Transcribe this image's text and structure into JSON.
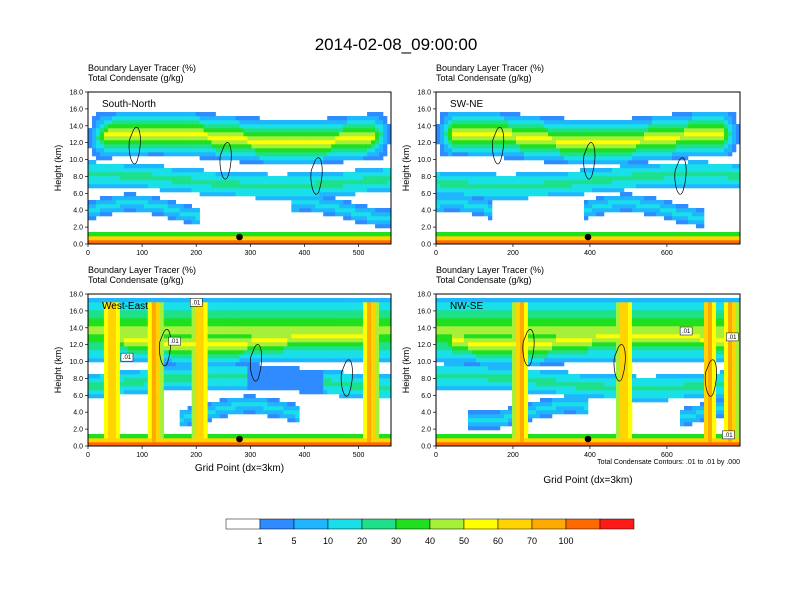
{
  "title": "2014-02-08_09:00:00",
  "colors": {
    "levels": [
      "#ffffff",
      "#2f8bff",
      "#1fb6ff",
      "#19e0e8",
      "#1fe08a",
      "#1fe01f",
      "#a6f03a",
      "#ffff00",
      "#ffd400",
      "#ffaa00",
      "#ff6a00",
      "#ff1a1a"
    ],
    "contour": "#000000",
    "frame": "#000000"
  },
  "colorbar": {
    "labels": [
      "1",
      "5",
      "10",
      "20",
      "30",
      "40",
      "50",
      "60",
      "70",
      "100"
    ]
  },
  "footer": {
    "contour_note": "Total Condensate Contours: .01 to .01 by .000",
    "xlabel": "Grid Point (dx=3km)"
  },
  "chart_data": [
    {
      "type": "heatmap",
      "id": "south-north",
      "panel_label": "South-North",
      "subtitle1": "Boundary Layer Tracer   (%)",
      "subtitle2": "Total Condensate   (g/kg)",
      "ylabel": "Height (km)",
      "xlabel": "",
      "xlim": [
        0,
        560
      ],
      "ylim": [
        0,
        18
      ],
      "xticks": [
        0,
        100,
        200,
        300,
        400,
        500
      ],
      "yticks": [
        "0.0",
        "2.0",
        "4.0",
        "6.0",
        "8.0",
        "10.0",
        "12.0",
        "14.0",
        "16.0",
        "18.0"
      ],
      "marker_x": 280,
      "contour_labels": []
    },
    {
      "type": "heatmap",
      "id": "sw-ne",
      "panel_label": "SW-NE",
      "subtitle1": "Boundary Layer Tracer   (%)",
      "subtitle2": "Total Condensate   (g/kg)",
      "ylabel": "Height (km)",
      "xlabel": "",
      "xlim": [
        0,
        790
      ],
      "ylim": [
        0,
        18
      ],
      "xticks": [
        0,
        200,
        400,
        600
      ],
      "yticks": [
        "0.0",
        "2.0",
        "4.0",
        "6.0",
        "8.0",
        "10.0",
        "12.0",
        "14.0",
        "16.0",
        "18.0"
      ],
      "marker_x": 395,
      "contour_labels": []
    },
    {
      "type": "heatmap",
      "id": "west-east",
      "panel_label": "West-East",
      "subtitle1": "Boundary Layer Tracer   (%)",
      "subtitle2": "Total Condensate   (g/kg)",
      "ylabel": "Height (km)",
      "xlabel": "Grid Point (dx=3km)",
      "xlim": [
        0,
        560
      ],
      "ylim": [
        0,
        18
      ],
      "xticks": [
        0,
        100,
        200,
        300,
        400,
        500
      ],
      "yticks": [
        "0.0",
        "2.0",
        "4.0",
        "6.0",
        "8.0",
        "10.0",
        "12.0",
        "14.0",
        "16.0",
        "18.0"
      ],
      "marker_x": 280,
      "contour_labels": [
        {
          "text": ".01",
          "x": 200,
          "y": 16.9
        },
        {
          "text": ".01",
          "x": 160,
          "y": 12.3
        },
        {
          "text": ".01",
          "x": 72,
          "y": 10.4
        }
      ]
    },
    {
      "type": "heatmap",
      "id": "nw-se",
      "panel_label": "NW-SE",
      "subtitle1": "Boundary Layer Tracer   (%)",
      "subtitle2": "Total Condensate   (g/kg)",
      "ylabel": "Height (km)",
      "xlabel": "",
      "xlim": [
        0,
        790
      ],
      "ylim": [
        0,
        18
      ],
      "xticks": [
        0,
        200,
        400,
        600
      ],
      "yticks": [
        "0.0",
        "2.0",
        "4.0",
        "6.0",
        "8.0",
        "10.0",
        "12.0",
        "14.0",
        "16.0",
        "18.0"
      ],
      "marker_x": 395,
      "contour_labels": [
        {
          "text": ".01",
          "x": 650,
          "y": 13.5
        },
        {
          "text": ".01",
          "x": 770,
          "y": 12.8
        },
        {
          "text": ".01",
          "x": 760,
          "y": 1.2
        }
      ]
    }
  ]
}
